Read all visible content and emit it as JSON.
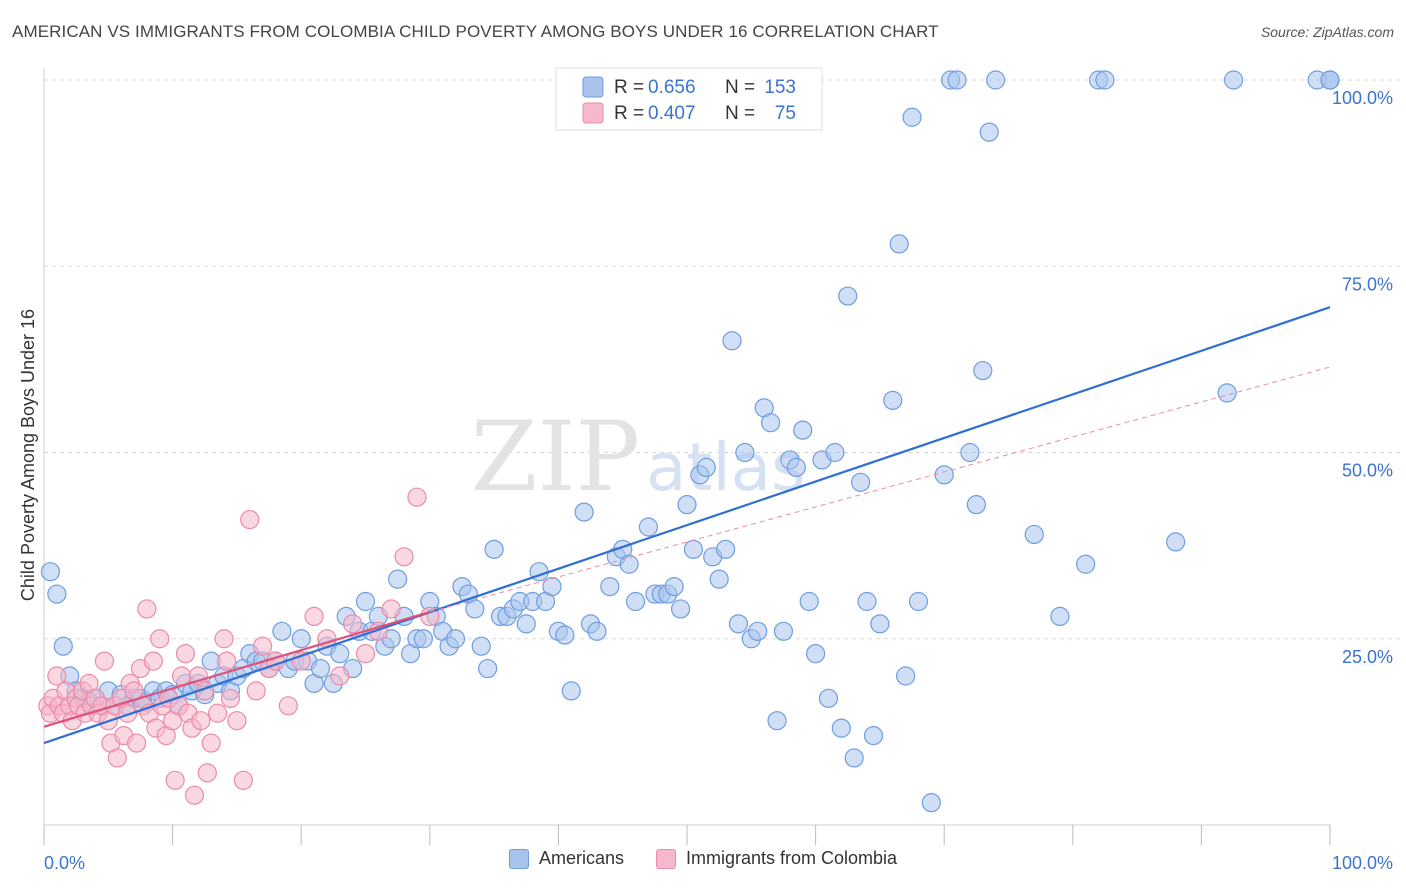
{
  "header": {
    "title": "AMERICAN VS IMMIGRANTS FROM COLOMBIA CHILD POVERTY AMONG BOYS UNDER 16 CORRELATION CHART",
    "source": "Source: ZipAtlas.com"
  },
  "watermark": {
    "zip": "ZIP",
    "atlas": "atlas"
  },
  "colors": {
    "americans_fill": "#a9c4ec",
    "americans_stroke": "#6f9de0",
    "americans_line": "#2f6fd1",
    "colombia_fill": "#f6b8cb",
    "colombia_stroke": "#ec8aa8",
    "colombia_line": "#e0507a",
    "value_text": "#3a74d0",
    "grid": "#d9d9d9"
  },
  "legend_top": {
    "rows": [
      {
        "r_label": "R =",
        "r_value": "0.656",
        "n_label": "N =",
        "n_value": "153"
      },
      {
        "r_label": "R =",
        "r_value": "0.407",
        "n_label": "N =",
        "n_value": "75"
      }
    ]
  },
  "legend_bottom": {
    "items": [
      {
        "label": "Americans"
      },
      {
        "label": "Immigrants from Colombia"
      }
    ]
  },
  "chart_data": {
    "type": "scatter",
    "title": "AMERICAN VS IMMIGRANTS FROM COLOMBIA CHILD POVERTY AMONG BOYS UNDER 16 CORRELATION CHART",
    "xlabel": "",
    "ylabel": "Child Poverty Among Boys Under 16",
    "xlim": [
      0,
      100
    ],
    "ylim": [
      0,
      100
    ],
    "x_tick_labels": [
      "0.0%",
      "100.0%"
    ],
    "y_tick_labels": [
      "25.0%",
      "50.0%",
      "75.0%",
      "100.0%"
    ],
    "y_ticks": [
      25,
      50,
      75,
      100
    ],
    "grid": true,
    "series": [
      {
        "name": "Americans",
        "r": 0.656,
        "n": 153,
        "trend": {
          "x0": 0,
          "y0": 11.0,
          "x1": 100,
          "y1": 69.5
        },
        "points": [
          [
            0.5,
            34
          ],
          [
            1,
            31
          ],
          [
            1.5,
            24
          ],
          [
            2,
            20
          ],
          [
            2.5,
            18
          ],
          [
            3,
            17
          ],
          [
            3.5,
            16.5
          ],
          [
            4,
            17
          ],
          [
            4.5,
            16
          ],
          [
            5,
            18
          ],
          [
            5.5,
            16
          ],
          [
            6,
            17.5
          ],
          [
            6.5,
            16
          ],
          [
            7,
            17
          ],
          [
            7.5,
            17
          ],
          [
            8,
            16.5
          ],
          [
            8.5,
            18
          ],
          [
            9,
            17
          ],
          [
            9.5,
            18
          ],
          [
            10,
            17.5
          ],
          [
            10.5,
            16
          ],
          [
            11,
            19
          ],
          [
            11.5,
            18
          ],
          [
            12,
            19
          ],
          [
            12.5,
            17.5
          ],
          [
            13,
            22
          ],
          [
            13.5,
            19
          ],
          [
            14,
            20
          ],
          [
            14.5,
            18
          ],
          [
            15,
            20
          ],
          [
            15.5,
            21
          ],
          [
            16,
            23
          ],
          [
            16.5,
            22
          ],
          [
            17,
            22
          ],
          [
            17.5,
            21
          ],
          [
            18,
            22
          ],
          [
            18.5,
            26
          ],
          [
            19,
            21
          ],
          [
            19.5,
            22
          ],
          [
            20,
            25
          ],
          [
            20.5,
            22
          ],
          [
            21,
            19
          ],
          [
            21.5,
            21
          ],
          [
            22,
            24
          ],
          [
            22.5,
            19
          ],
          [
            23,
            23
          ],
          [
            23.5,
            28
          ],
          [
            24,
            21
          ],
          [
            24.5,
            26
          ],
          [
            25,
            30
          ],
          [
            25.5,
            26
          ],
          [
            26,
            28
          ],
          [
            26.5,
            24
          ],
          [
            27,
            25
          ],
          [
            27.5,
            33
          ],
          [
            28,
            28
          ],
          [
            28.5,
            23
          ],
          [
            29,
            25
          ],
          [
            29.5,
            25
          ],
          [
            30,
            30
          ],
          [
            30.5,
            28
          ],
          [
            31,
            26
          ],
          [
            31.5,
            24
          ],
          [
            32,
            25
          ],
          [
            32.5,
            32
          ],
          [
            33,
            31
          ],
          [
            33.5,
            29
          ],
          [
            34,
            24
          ],
          [
            34.5,
            21
          ],
          [
            35,
            37
          ],
          [
            35.5,
            28
          ],
          [
            36,
            28
          ],
          [
            36.5,
            29
          ],
          [
            37,
            30
          ],
          [
            37.5,
            27
          ],
          [
            38,
            30
          ],
          [
            38.5,
            34
          ],
          [
            39,
            30
          ],
          [
            39.5,
            32
          ],
          [
            40,
            26
          ],
          [
            40.5,
            25.5
          ],
          [
            41,
            18
          ],
          [
            42,
            42
          ],
          [
            42.5,
            27
          ],
          [
            43,
            26
          ],
          [
            44,
            32
          ],
          [
            44.5,
            36
          ],
          [
            45,
            37
          ],
          [
            45.5,
            35
          ],
          [
            46,
            30
          ],
          [
            47,
            40
          ],
          [
            47.5,
            31
          ],
          [
            48,
            31
          ],
          [
            48.5,
            31
          ],
          [
            49,
            32
          ],
          [
            49.5,
            29
          ],
          [
            50,
            43
          ],
          [
            50.5,
            37
          ],
          [
            51,
            47
          ],
          [
            51.5,
            48
          ],
          [
            52,
            36
          ],
          [
            52.5,
            33
          ],
          [
            53,
            37
          ],
          [
            53.5,
            65
          ],
          [
            54,
            27
          ],
          [
            54.5,
            50
          ],
          [
            55,
            25
          ],
          [
            55.5,
            26
          ],
          [
            56,
            56
          ],
          [
            56.5,
            54
          ],
          [
            57,
            14
          ],
          [
            57.5,
            26
          ],
          [
            58,
            49
          ],
          [
            58.5,
            48
          ],
          [
            59,
            53
          ],
          [
            59.5,
            30
          ],
          [
            60,
            23
          ],
          [
            60.5,
            49
          ],
          [
            61,
            17
          ],
          [
            61.5,
            50
          ],
          [
            62,
            13
          ],
          [
            62.5,
            71
          ],
          [
            63,
            9
          ],
          [
            63.5,
            46
          ],
          [
            64,
            30
          ],
          [
            64.5,
            12
          ],
          [
            65,
            27
          ],
          [
            66,
            57
          ],
          [
            66.5,
            78
          ],
          [
            67,
            20
          ],
          [
            67.5,
            95
          ],
          [
            68,
            30
          ],
          [
            69,
            3
          ],
          [
            70,
            47
          ],
          [
            70.5,
            100
          ],
          [
            71,
            100
          ],
          [
            72,
            50
          ],
          [
            72.5,
            43
          ],
          [
            73,
            61
          ],
          [
            73.5,
            93
          ],
          [
            74,
            100
          ],
          [
            77,
            39
          ],
          [
            79,
            28
          ],
          [
            81,
            35
          ],
          [
            82,
            100
          ],
          [
            82.5,
            100
          ],
          [
            88,
            38
          ],
          [
            92,
            58
          ],
          [
            92.5,
            100
          ],
          [
            100,
            100
          ],
          [
            99,
            100
          ],
          [
            100,
            100
          ],
          [
            100,
            100
          ]
        ]
      },
      {
        "name": "Immigrants from Colombia",
        "r": 0.407,
        "n": 75,
        "trend": {
          "x0": 0,
          "y0": 13.2,
          "x1": 30,
          "y1": 28.6
        },
        "points": [
          [
            0.3,
            16
          ],
          [
            0.5,
            15
          ],
          [
            0.7,
            17
          ],
          [
            1,
            20
          ],
          [
            1.2,
            16
          ],
          [
            1.5,
            15
          ],
          [
            1.7,
            18
          ],
          [
            2,
            16
          ],
          [
            2.2,
            14
          ],
          [
            2.5,
            17
          ],
          [
            2.7,
            16
          ],
          [
            3,
            18
          ],
          [
            3.2,
            15
          ],
          [
            3.5,
            19
          ],
          [
            3.7,
            16
          ],
          [
            4,
            17
          ],
          [
            4.2,
            15
          ],
          [
            4.5,
            16
          ],
          [
            4.7,
            22
          ],
          [
            5,
            14
          ],
          [
            5.2,
            11
          ],
          [
            5.5,
            16
          ],
          [
            5.7,
            9
          ],
          [
            6,
            17
          ],
          [
            6.2,
            12
          ],
          [
            6.5,
            15
          ],
          [
            6.7,
            19
          ],
          [
            7,
            18
          ],
          [
            7.2,
            11
          ],
          [
            7.5,
            21
          ],
          [
            7.7,
            16
          ],
          [
            8,
            29
          ],
          [
            8.2,
            15
          ],
          [
            8.5,
            22
          ],
          [
            8.7,
            13
          ],
          [
            9,
            25
          ],
          [
            9.2,
            16
          ],
          [
            9.5,
            12
          ],
          [
            9.7,
            17
          ],
          [
            10,
            14
          ],
          [
            10.2,
            6
          ],
          [
            10.5,
            16
          ],
          [
            10.7,
            20
          ],
          [
            11,
            23
          ],
          [
            11.2,
            15
          ],
          [
            11.5,
            13
          ],
          [
            11.7,
            4
          ],
          [
            12,
            20
          ],
          [
            12.2,
            14
          ],
          [
            12.5,
            18
          ],
          [
            12.7,
            7
          ],
          [
            13,
            11
          ],
          [
            13.5,
            15
          ],
          [
            14,
            25
          ],
          [
            14.2,
            22
          ],
          [
            14.5,
            17
          ],
          [
            15,
            14
          ],
          [
            15.5,
            6
          ],
          [
            16,
            41
          ],
          [
            16.5,
            18
          ],
          [
            17,
            24
          ],
          [
            17.5,
            21
          ],
          [
            18,
            22
          ],
          [
            19,
            16
          ],
          [
            20,
            22
          ],
          [
            21,
            28
          ],
          [
            22,
            25
          ],
          [
            23,
            20
          ],
          [
            24,
            27
          ],
          [
            25,
            23
          ],
          [
            26,
            26
          ],
          [
            27,
            29
          ],
          [
            28,
            36
          ],
          [
            29,
            44
          ],
          [
            30,
            28
          ]
        ]
      }
    ]
  }
}
